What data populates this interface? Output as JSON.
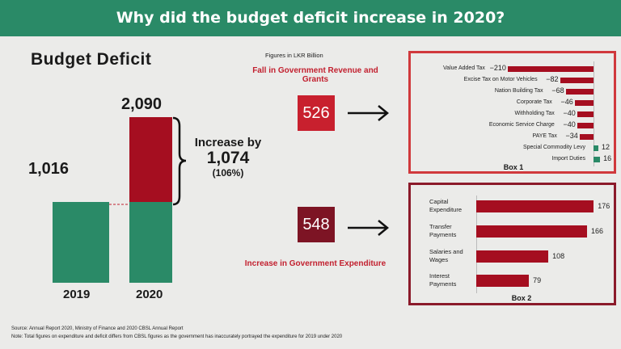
{
  "title": "Why did the budget deficit increase in 2020?",
  "colors": {
    "header": "#2a8a67",
    "green": "#2a8a67",
    "red": "#a50e20",
    "dark_red": "#7d1424",
    "box_border": "#d0393c"
  },
  "chart_data": [
    {
      "type": "bar",
      "title": "Budget Deficit",
      "categories": [
        "2019",
        "2020"
      ],
      "series": [
        {
          "values": [
            1016,
            1016
          ]
        },
        {
          "values": [
            0,
            1074
          ]
        }
      ],
      "totals": [
        "1,016",
        "2,090"
      ],
      "annotation": {
        "line1": "Increase by",
        "value": "1,074",
        "pct": "(106%)"
      }
    },
    {
      "type": "bar",
      "title": "Box 1",
      "orientation": "horizontal",
      "categories": [
        "Value Added Tax",
        "Excise Tax on Motor Vehicles",
        "Nation Building Tax",
        "Corporate Tax",
        "Withholding Tax",
        "Economic Service Charge",
        "PAYE Tax",
        "Special Commodity Levy",
        "Import Duties"
      ],
      "values": [
        -210,
        -82,
        -68,
        -46,
        -40,
        -40,
        -34,
        12,
        16
      ]
    },
    {
      "type": "bar",
      "title": "Box 2",
      "orientation": "horizontal",
      "categories": [
        "Capital Expenditure",
        "Transfer Payments",
        "Salaries and Wages",
        "Interest Payments"
      ],
      "values": [
        176,
        166,
        108,
        79
      ]
    }
  ],
  "units": "Figures in LKR Billion",
  "revenue": {
    "label": "Fall in Government Revenue and Grants",
    "value": "526"
  },
  "expenditure": {
    "label": "Increase in Government Expenditure",
    "value": "548"
  },
  "footer": {
    "source": "Source: Annual Report 2020, Ministry of Finance and 2020 CBSL Annual Report",
    "note": "Note: Total figures on expenditure and deficit differs from CBSL figures as the government has inaccurately portrayed the expenditure for 2019 under 2020"
  }
}
